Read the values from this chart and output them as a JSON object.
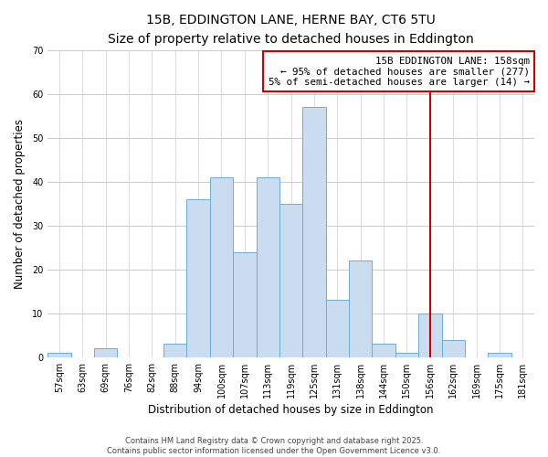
{
  "title": "15B, EDDINGTON LANE, HERNE BAY, CT6 5TU",
  "subtitle": "Size of property relative to detached houses in Eddington",
  "xlabel": "Distribution of detached houses by size in Eddington",
  "ylabel": "Number of detached properties",
  "bin_labels": [
    "57sqm",
    "63sqm",
    "69sqm",
    "76sqm",
    "82sqm",
    "88sqm",
    "94sqm",
    "100sqm",
    "107sqm",
    "113sqm",
    "119sqm",
    "125sqm",
    "131sqm",
    "138sqm",
    "144sqm",
    "150sqm",
    "156sqm",
    "162sqm",
    "169sqm",
    "175sqm",
    "181sqm"
  ],
  "bar_heights": [
    1,
    0,
    2,
    0,
    0,
    3,
    36,
    41,
    24,
    41,
    35,
    57,
    13,
    22,
    3,
    1,
    10,
    4,
    0,
    1,
    0
  ],
  "bar_color": "#c9dcf0",
  "bar_edge_color": "#6baed6",
  "vline_x": 16.0,
  "vline_color": "#cc0000",
  "ylim": [
    0,
    70
  ],
  "yticks": [
    0,
    10,
    20,
    30,
    40,
    50,
    60,
    70
  ],
  "annotation_title": "15B EDDINGTON LANE: 158sqm",
  "annotation_line1": "← 95% of detached houses are smaller (277)",
  "annotation_line2": "5% of semi-detached houses are larger (14) →",
  "annotation_box_color": "#ffffff",
  "annotation_box_edge_color": "#cc0000",
  "footer1": "Contains HM Land Registry data © Crown copyright and database right 2025.",
  "footer2": "Contains public sector information licensed under the Open Government Licence v3.0.",
  "background_color": "#ffffff",
  "grid_color": "#cccccc",
  "title_fontsize": 10,
  "subtitle_fontsize": 8.5,
  "axis_label_fontsize": 8.5,
  "tick_fontsize": 7,
  "annotation_fontsize": 7.8,
  "footer_fontsize": 6
}
